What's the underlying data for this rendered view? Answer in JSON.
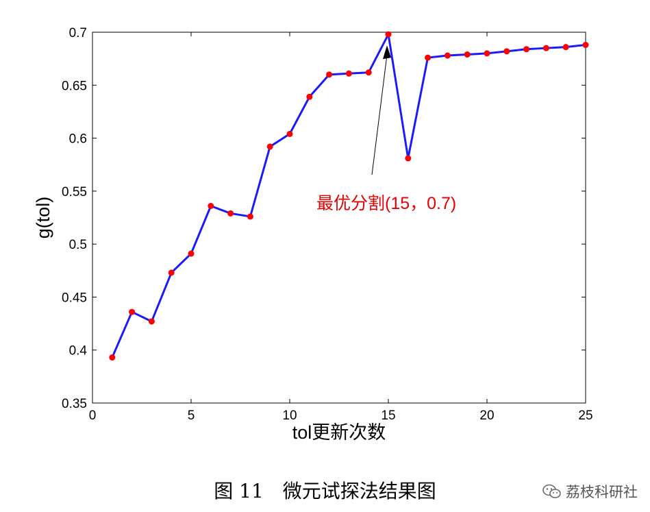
{
  "chart_data": {
    "type": "line",
    "xlabel": "tol更新次数",
    "ylabel": "g(tol)",
    "xlim": [
      0,
      25
    ],
    "ylim": [
      0.35,
      0.7
    ],
    "xticks": [
      "0",
      "5",
      "10",
      "15",
      "20",
      "25"
    ],
    "yticks": [
      "0.35",
      "0.4",
      "0.45",
      "0.5",
      "0.55",
      "0.6",
      "0.65",
      "0.7"
    ],
    "x": [
      1,
      2,
      3,
      4,
      5,
      6,
      7,
      8,
      9,
      10,
      11,
      12,
      13,
      14,
      15,
      16,
      17,
      18,
      19,
      20,
      21,
      22,
      23,
      24,
      25
    ],
    "y": [
      0.393,
      0.436,
      0.427,
      0.473,
      0.491,
      0.536,
      0.529,
      0.526,
      0.592,
      0.604,
      0.639,
      0.66,
      0.661,
      0.662,
      0.698,
      0.581,
      0.676,
      0.678,
      0.679,
      0.68,
      0.682,
      0.684,
      0.685,
      0.686,
      0.688
    ],
    "line_color": "#1a1aff",
    "marker_color": "#ff0000",
    "grid": false,
    "annotation": {
      "text": "最优分割(15，0.7)",
      "target_x": 15,
      "target_y": 0.698,
      "color": "#e60000"
    }
  },
  "caption": "图 11　微元试探法结果图",
  "watermark": {
    "icon": "wechat-icon",
    "text": "荔枝科研社"
  }
}
